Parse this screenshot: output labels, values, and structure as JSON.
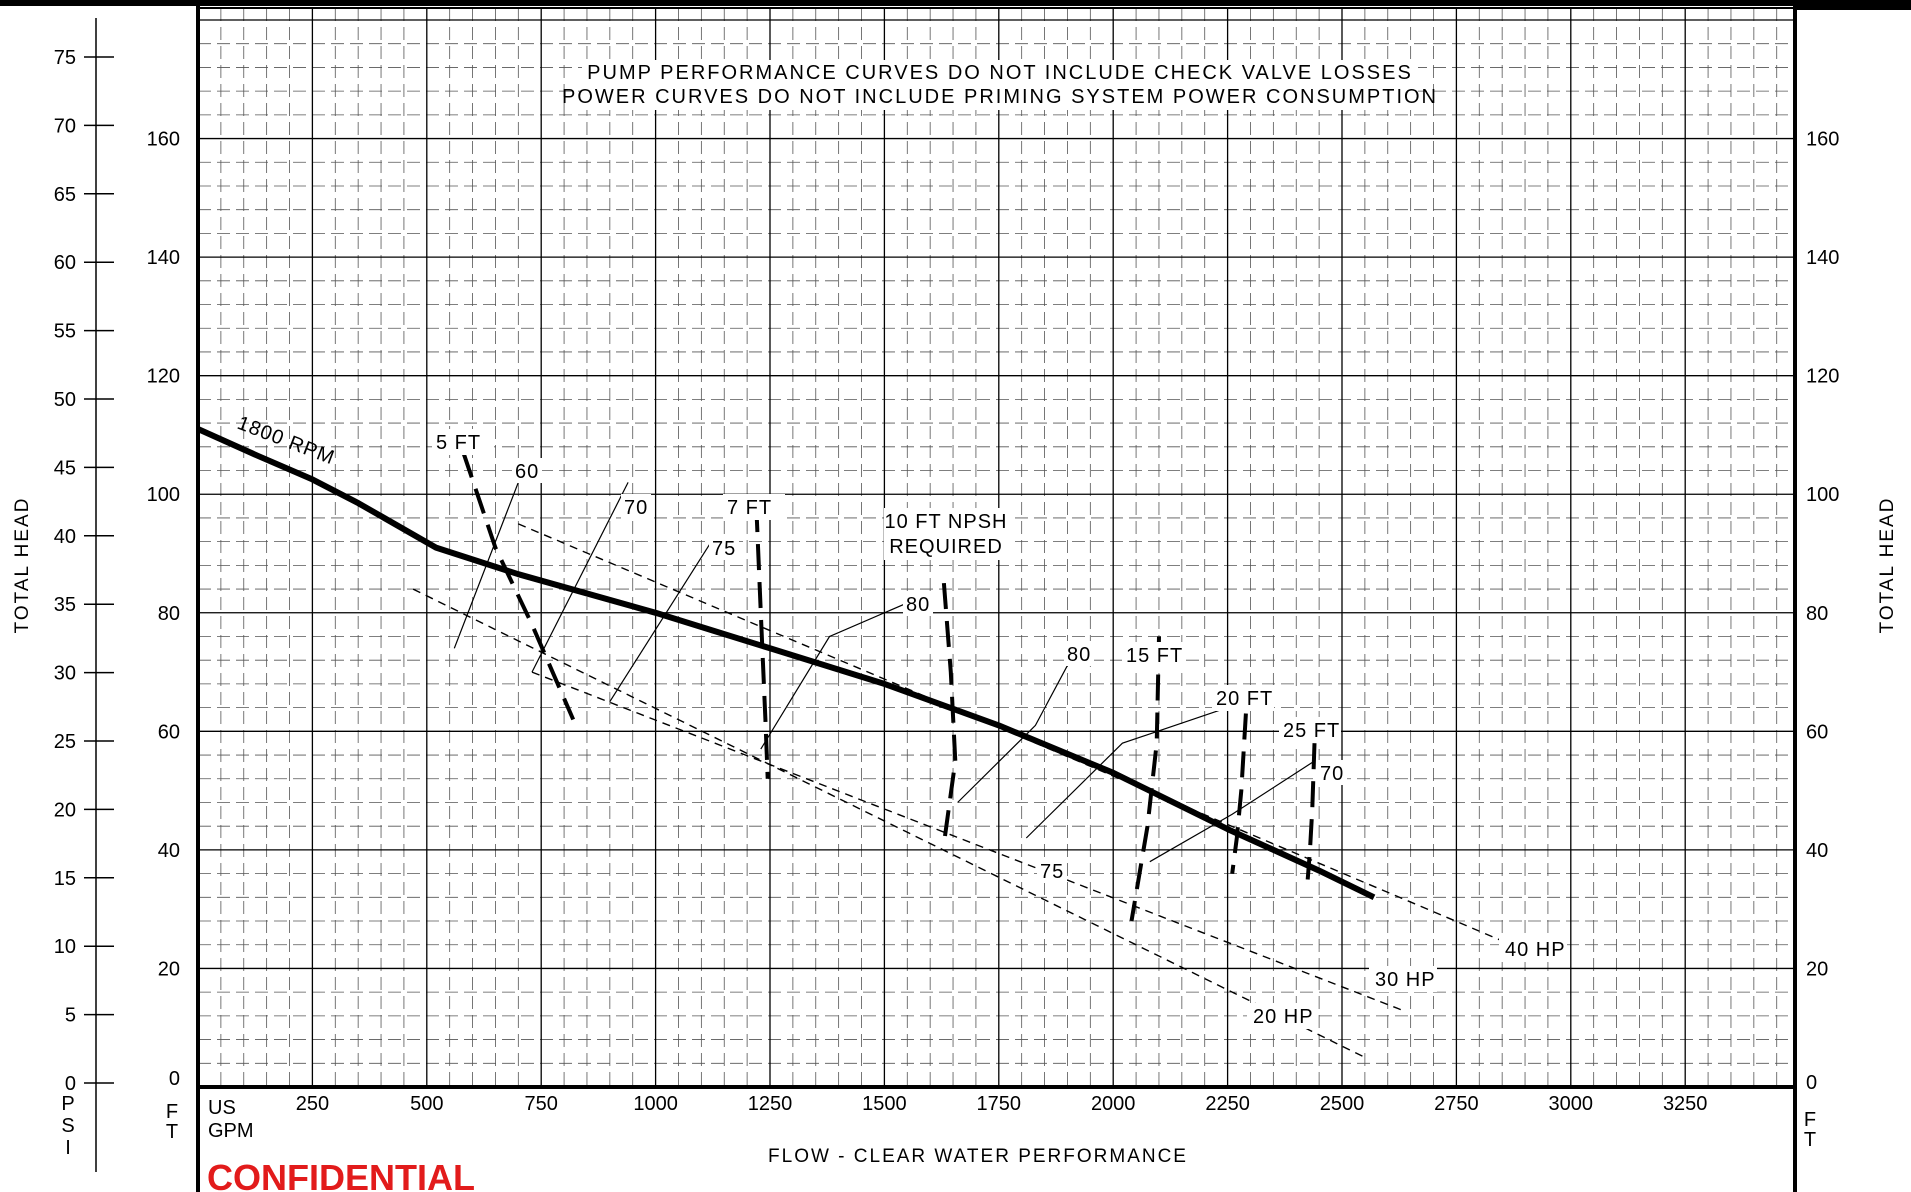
{
  "chart_data": {
    "type": "line",
    "title": "",
    "notes": [
      "PUMP PERFORMANCE CURVES DO NOT INCLUDE CHECK VALVE LOSSES",
      "POWER CURVES DO NOT INCLUDE PRIMING SYSTEM POWER CONSUMPTION"
    ],
    "xlabel": "FLOW - CLEAR WATER PERFORMANCE",
    "x_unit_lines": [
      "US",
      "GPM"
    ],
    "xlim": [
      0,
      3500
    ],
    "x_ticks": [
      250,
      500,
      750,
      1000,
      1250,
      1500,
      1750,
      2000,
      2250,
      2500,
      2750,
      3000,
      3250
    ],
    "ylabel_left": "TOTAL HEAD",
    "ylabel_right": "TOTAL HEAD",
    "psi_axis": {
      "unit_letters": [
        "P",
        "S",
        "I"
      ],
      "range": [
        0,
        79
      ],
      "ticks": [
        0,
        5,
        10,
        15,
        20,
        25,
        30,
        35,
        40,
        45,
        50,
        55,
        60,
        65,
        70,
        75
      ]
    },
    "ft_axis_left": {
      "unit_letters": [
        "F",
        "T"
      ],
      "range": [
        0,
        182
      ],
      "ticks": [
        0,
        20,
        40,
        60,
        80,
        100,
        120,
        140,
        160
      ]
    },
    "ft_axis_right": {
      "unit_letters": [
        "F",
        "T"
      ],
      "ticks": [
        0,
        20,
        40,
        60,
        80,
        100,
        120,
        140,
        160
      ]
    },
    "grid": true,
    "head_curve": {
      "name": "1800 RPM",
      "points": [
        [
          0,
          111
        ],
        [
          130,
          106.5
        ],
        [
          250,
          102.5
        ],
        [
          350,
          98.5
        ],
        [
          520,
          91
        ],
        [
          700,
          86.5
        ],
        [
          1000,
          80
        ],
        [
          1250,
          74
        ],
        [
          1500,
          68
        ],
        [
          1750,
          61
        ],
        [
          2000,
          53
        ],
        [
          2250,
          43.5
        ],
        [
          2450,
          36.5
        ],
        [
          2570,
          32
        ]
      ]
    },
    "efficiency_lines": [
      {
        "label": "60",
        "points": [
          [
            560,
            74
          ],
          [
            710,
            104
          ]
        ]
      },
      {
        "label": "70",
        "points": [
          [
            730,
            70
          ],
          [
            940,
            102
          ]
        ]
      },
      {
        "label": "75",
        "points": [
          [
            900,
            65
          ],
          [
            1130,
            93
          ]
        ]
      },
      {
        "label": "80",
        "points": [
          [
            1230,
            57
          ],
          [
            1380,
            76
          ],
          [
            1560,
            82
          ]
        ]
      },
      {
        "label": "80",
        "points": [
          [
            1660,
            48
          ],
          [
            1830,
            61
          ],
          [
            1920,
            74
          ]
        ]
      },
      {
        "label": "75",
        "points": [
          [
            1810,
            42
          ],
          [
            2020,
            58
          ],
          [
            2250,
            64
          ]
        ]
      },
      {
        "label": "70",
        "points": [
          [
            2080,
            38
          ],
          [
            2260,
            46
          ],
          [
            2440,
            55
          ]
        ]
      }
    ],
    "npsh_curves": [
      {
        "label": "5 FT",
        "points": [
          [
            580,
            107
          ],
          [
            650,
            91
          ],
          [
            730,
            78
          ],
          [
            820,
            62
          ]
        ]
      },
      {
        "label": "7 FT",
        "points": [
          [
            1220,
            98
          ],
          [
            1230,
            80
          ],
          [
            1240,
            62
          ],
          [
            1245,
            52
          ]
        ]
      },
      {
        "label": "10 FT NPSH REQUIRED",
        "points": [
          [
            1630,
            85
          ],
          [
            1645,
            70
          ],
          [
            1655,
            55
          ],
          [
            1630,
            41
          ]
        ]
      },
      {
        "label": "15 FT",
        "points": [
          [
            2100,
            76
          ],
          [
            2095,
            58
          ],
          [
            2075,
            44
          ],
          [
            2040,
            28
          ]
        ]
      },
      {
        "label": "20 FT",
        "points": [
          [
            2290,
            63
          ],
          [
            2280,
            50
          ],
          [
            2270,
            42
          ],
          [
            2260,
            36
          ]
        ]
      },
      {
        "label": "25 FT",
        "points": [
          [
            2440,
            58
          ],
          [
            2435,
            47
          ],
          [
            2430,
            40
          ],
          [
            2425,
            35
          ]
        ]
      }
    ],
    "power_lines": [
      {
        "label": "40 HP",
        "points": [
          [
            700,
            95
          ],
          [
            2870,
            24
          ]
        ]
      },
      {
        "label": "30 HP",
        "points": [
          [
            730,
            70
          ],
          [
            2630,
            13
          ]
        ]
      },
      {
        "label": "20 HP",
        "points": [
          [
            470,
            84
          ],
          [
            2550,
            5
          ]
        ]
      }
    ],
    "watermark": "CONFIDENTIAL"
  }
}
